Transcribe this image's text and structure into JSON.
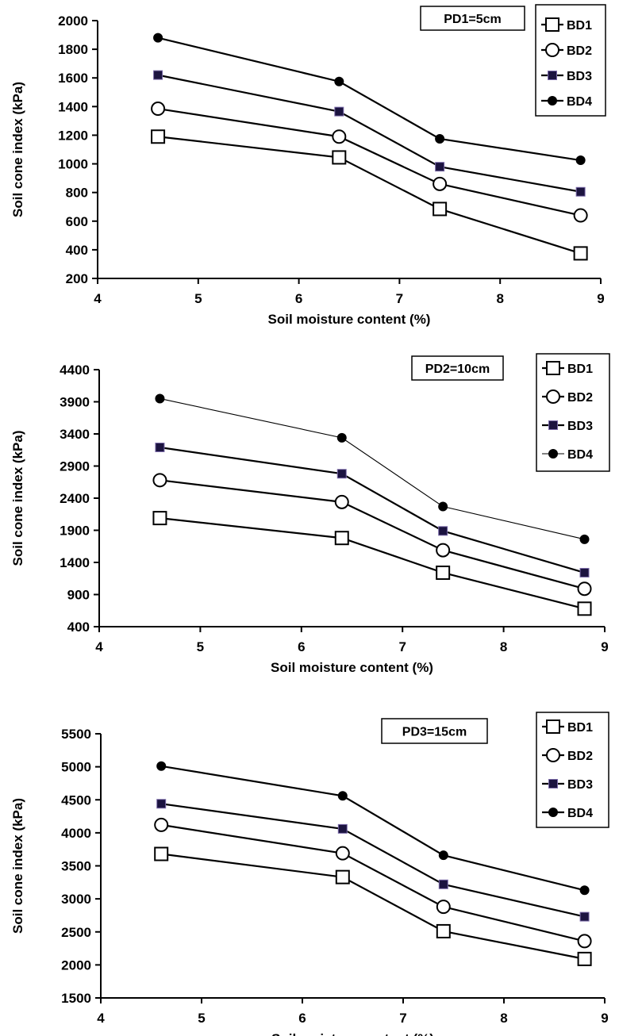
{
  "chart_data": [
    {
      "type": "line",
      "annotation": "PD1=5cm",
      "xlabel": "Soil moisture content  (%)",
      "ylabel": "Soil cone index (kPa)",
      "xlim": [
        4,
        9
      ],
      "ylim": [
        200,
        2000
      ],
      "xticks": [
        "4",
        "5",
        "6",
        "7",
        "8",
        "9"
      ],
      "yticks": [
        "200",
        "400",
        "600",
        "800",
        "1000",
        "1200",
        "1400",
        "1600",
        "1800",
        "2000"
      ],
      "x": [
        4.6,
        6.4,
        7.4,
        8.8
      ],
      "legend_position": "top-right",
      "series": [
        {
          "name": "BD1",
          "marker": "open-square",
          "values": [
            1190,
            1045,
            685,
            375
          ]
        },
        {
          "name": "BD2",
          "marker": "open-circle",
          "values": [
            1385,
            1190,
            860,
            640
          ]
        },
        {
          "name": "BD3",
          "marker": "filled-square",
          "values": [
            1620,
            1365,
            980,
            805
          ]
        },
        {
          "name": "BD4",
          "marker": "filled-circle",
          "values": [
            1880,
            1575,
            1175,
            1025
          ]
        }
      ]
    },
    {
      "type": "line",
      "annotation": "PD2=10cm",
      "xlabel": "Soil moisture content  (%)",
      "ylabel": "Soil cone index (kPa)",
      "xlim": [
        4,
        9
      ],
      "ylim": [
        400,
        4400
      ],
      "xticks": [
        "4",
        "5",
        "6",
        "7",
        "8",
        "9"
      ],
      "yticks": [
        "400",
        "900",
        "1400",
        "1900",
        "2400",
        "2900",
        "3400",
        "3900",
        "4400"
      ],
      "x": [
        4.6,
        6.4,
        7.4,
        8.8
      ],
      "legend_position": "top-right",
      "series": [
        {
          "name": "BD1",
          "marker": "open-square",
          "values": [
            2090,
            1780,
            1240,
            680
          ]
        },
        {
          "name": "BD2",
          "marker": "open-circle",
          "values": [
            2680,
            2340,
            1590,
            990
          ]
        },
        {
          "name": "BD3",
          "marker": "filled-square",
          "values": [
            3190,
            2780,
            1890,
            1240
          ]
        },
        {
          "name": "BD4",
          "marker": "filled-circle",
          "values": [
            3950,
            3340,
            2270,
            1760
          ]
        }
      ]
    },
    {
      "type": "line",
      "annotation": "PD3=15cm",
      "xlabel": "Soil moisture content  (%)",
      "ylabel": "Soil cone index (kPa)",
      "xlim": [
        4,
        9
      ],
      "ylim": [
        1500,
        5500
      ],
      "xticks": [
        "4",
        "5",
        "6",
        "7",
        "8",
        "9"
      ],
      "yticks": [
        "1500",
        "2000",
        "2500",
        "3000",
        "3500",
        "4000",
        "4500",
        "5000",
        "5500"
      ],
      "x": [
        4.6,
        6.4,
        7.4,
        8.8
      ],
      "legend_position": "top-right",
      "series": [
        {
          "name": "BD1",
          "marker": "open-square",
          "values": [
            3680,
            3330,
            2510,
            2090
          ]
        },
        {
          "name": "BD2",
          "marker": "open-circle",
          "values": [
            4120,
            3690,
            2880,
            2360
          ]
        },
        {
          "name": "BD3",
          "marker": "filled-square",
          "values": [
            4440,
            4060,
            3220,
            2730
          ]
        },
        {
          "name": "BD4",
          "marker": "filled-circle",
          "values": [
            5010,
            4560,
            3660,
            3130
          ]
        }
      ]
    }
  ]
}
